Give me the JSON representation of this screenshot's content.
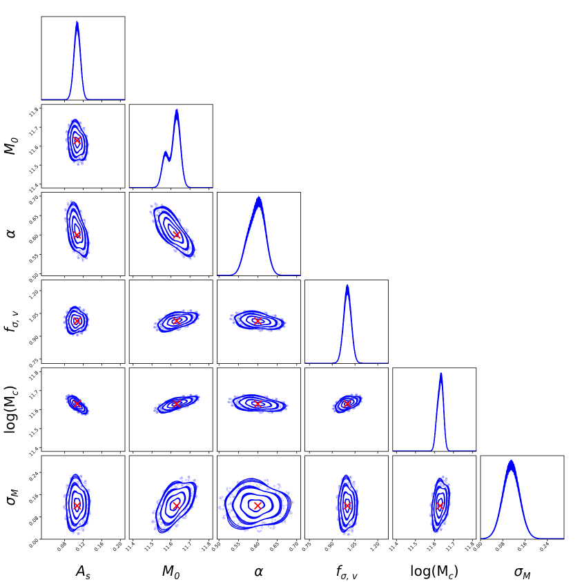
{
  "chart_data": {
    "type": "corner",
    "contour_color": "#0000ff",
    "truth_color": "#ff0000",
    "truth_marker": "x",
    "parameters": [
      {
        "key": "As",
        "label": {
          "base": "A",
          "sub": "s",
          "upright": false
        },
        "range": [
          0.03,
          0.21
        ],
        "ticks": [
          0.08,
          0.12,
          0.16,
          0.2
        ],
        "tick_labels": [
          "0.08",
          "0.12",
          "0.16",
          "0.20"
        ],
        "truth": 0.107,
        "marginal": {
          "mean": 0.107,
          "sd": 0.007
        }
      },
      {
        "key": "M0",
        "label": {
          "base": "M",
          "sub": "0",
          "upright": false
        },
        "range": [
          11.38,
          11.82
        ],
        "ticks": [
          11.4,
          11.5,
          11.6,
          11.7,
          11.8
        ],
        "tick_labels": [
          "11.4",
          "11.5",
          "11.6",
          "11.7",
          "11.8"
        ],
        "truth": 11.63,
        "marginal": {
          "mean": 11.63,
          "sd": 0.02,
          "shoulder": 11.57
        }
      },
      {
        "key": "alpha",
        "label": {
          "base": "α",
          "sub": "",
          "upright": false
        },
        "range": [
          0.495,
          0.71
        ],
        "ticks": [
          0.5,
          0.55,
          0.6,
          0.65,
          0.7
        ],
        "tick_labels": [
          "0.50",
          "0.55",
          "0.60",
          "0.65",
          "0.70"
        ],
        "truth": 0.6,
        "marginal": {
          "mean": 0.605,
          "sd": 0.016,
          "shoulder": 0.575
        }
      },
      {
        "key": "fsv",
        "label": {
          "base": "f",
          "sub": "σ, v",
          "upright": false
        },
        "range": [
          0.72,
          1.27
        ],
        "ticks": [
          0.75,
          0.9,
          1.05,
          1.2
        ],
        "tick_labels": [
          "0.75",
          "0.90",
          "1.05",
          "1.20"
        ],
        "truth": 1.0,
        "marginal": {
          "mean": 1.0,
          "sd": 0.025
        }
      },
      {
        "key": "logMc",
        "label": {
          "base": "log(M",
          "sub": "c",
          "close": ")",
          "upright": true
        },
        "range": [
          11.38,
          11.82
        ],
        "ticks": [
          11.4,
          11.5,
          11.6,
          11.7,
          11.8
        ],
        "tick_labels": [
          "11.4",
          "11.5",
          "11.6",
          "11.7",
          "11.8"
        ],
        "truth": 11.63,
        "marginal": {
          "mean": 11.637,
          "sd": 0.012,
          "shoulder": 11.615
        }
      },
      {
        "key": "sigmaM",
        "label": {
          "base": "σ",
          "sub": "M",
          "upright": false
        },
        "range": [
          0.0,
          0.3
        ],
        "ticks": [
          0.0,
          0.08,
          0.16,
          0.24
        ],
        "tick_labels": [
          "0.00",
          "0.08",
          "0.16",
          "0.24"
        ],
        "truth": 0.12,
        "marginal": {
          "mean": 0.11,
          "sd": 0.03
        }
      }
    ],
    "pairs": [
      {
        "x": "As",
        "y": "M0",
        "mean": [
          0.107,
          11.62
        ],
        "sd": [
          0.01,
          0.05
        ],
        "rho": -0.2
      },
      {
        "x": "As",
        "y": "alpha",
        "mean": [
          0.107,
          0.61
        ],
        "sd": [
          0.011,
          0.032
        ],
        "rho": -0.5
      },
      {
        "x": "M0",
        "y": "alpha",
        "mean": [
          11.61,
          0.61
        ],
        "sd": [
          0.05,
          0.03
        ],
        "rho": -0.75
      },
      {
        "x": "As",
        "y": "fsv",
        "mean": [
          0.105,
          1.0
        ],
        "sd": [
          0.011,
          0.04
        ],
        "rho": 0.0
      },
      {
        "x": "M0",
        "y": "fsv",
        "mean": [
          11.63,
          1.0
        ],
        "sd": [
          0.05,
          0.03
        ],
        "rho": 0.5
      },
      {
        "x": "alpha",
        "y": "fsv",
        "mean": [
          0.6,
          1.0
        ],
        "sd": [
          0.03,
          0.028
        ],
        "rho": -0.3
      },
      {
        "x": "As",
        "y": "logMc",
        "mean": [
          0.107,
          11.625
        ],
        "sd": [
          0.01,
          0.022
        ],
        "rho": -0.7
      },
      {
        "x": "M0",
        "y": "logMc",
        "mean": [
          11.63,
          11.63
        ],
        "sd": [
          0.05,
          0.02
        ],
        "rho": 0.7
      },
      {
        "x": "alpha",
        "y": "logMc",
        "mean": [
          0.6,
          11.63
        ],
        "sd": [
          0.032,
          0.02
        ],
        "rho": -0.3
      },
      {
        "x": "fsv",
        "y": "logMc",
        "mean": [
          1.0,
          11.632
        ],
        "sd": [
          0.04,
          0.02
        ],
        "rho": 0.5
      },
      {
        "x": "As",
        "y": "sigmaM",
        "mean": [
          0.107,
          0.125
        ],
        "sd": [
          0.012,
          0.045
        ],
        "rho": 0.0
      },
      {
        "x": "M0",
        "y": "sigmaM",
        "mean": [
          11.62,
          0.125
        ],
        "sd": [
          0.05,
          0.042
        ],
        "rho": 0.55
      },
      {
        "x": "alpha",
        "y": "sigmaM",
        "mean": [
          0.595,
          0.122
        ],
        "sd": [
          0.04,
          0.04
        ],
        "rho": 0.0
      },
      {
        "x": "fsv",
        "y": "sigmaM",
        "mean": [
          1.0,
          0.122
        ],
        "sd": [
          0.03,
          0.045
        ],
        "rho": 0.0
      },
      {
        "x": "logMc",
        "y": "sigmaM",
        "mean": [
          11.63,
          0.125
        ],
        "sd": [
          0.022,
          0.042
        ],
        "rho": 0.3
      }
    ],
    "contour_levels_sigma": [
      0.5,
      1.0,
      1.5,
      2.0
    ]
  }
}
